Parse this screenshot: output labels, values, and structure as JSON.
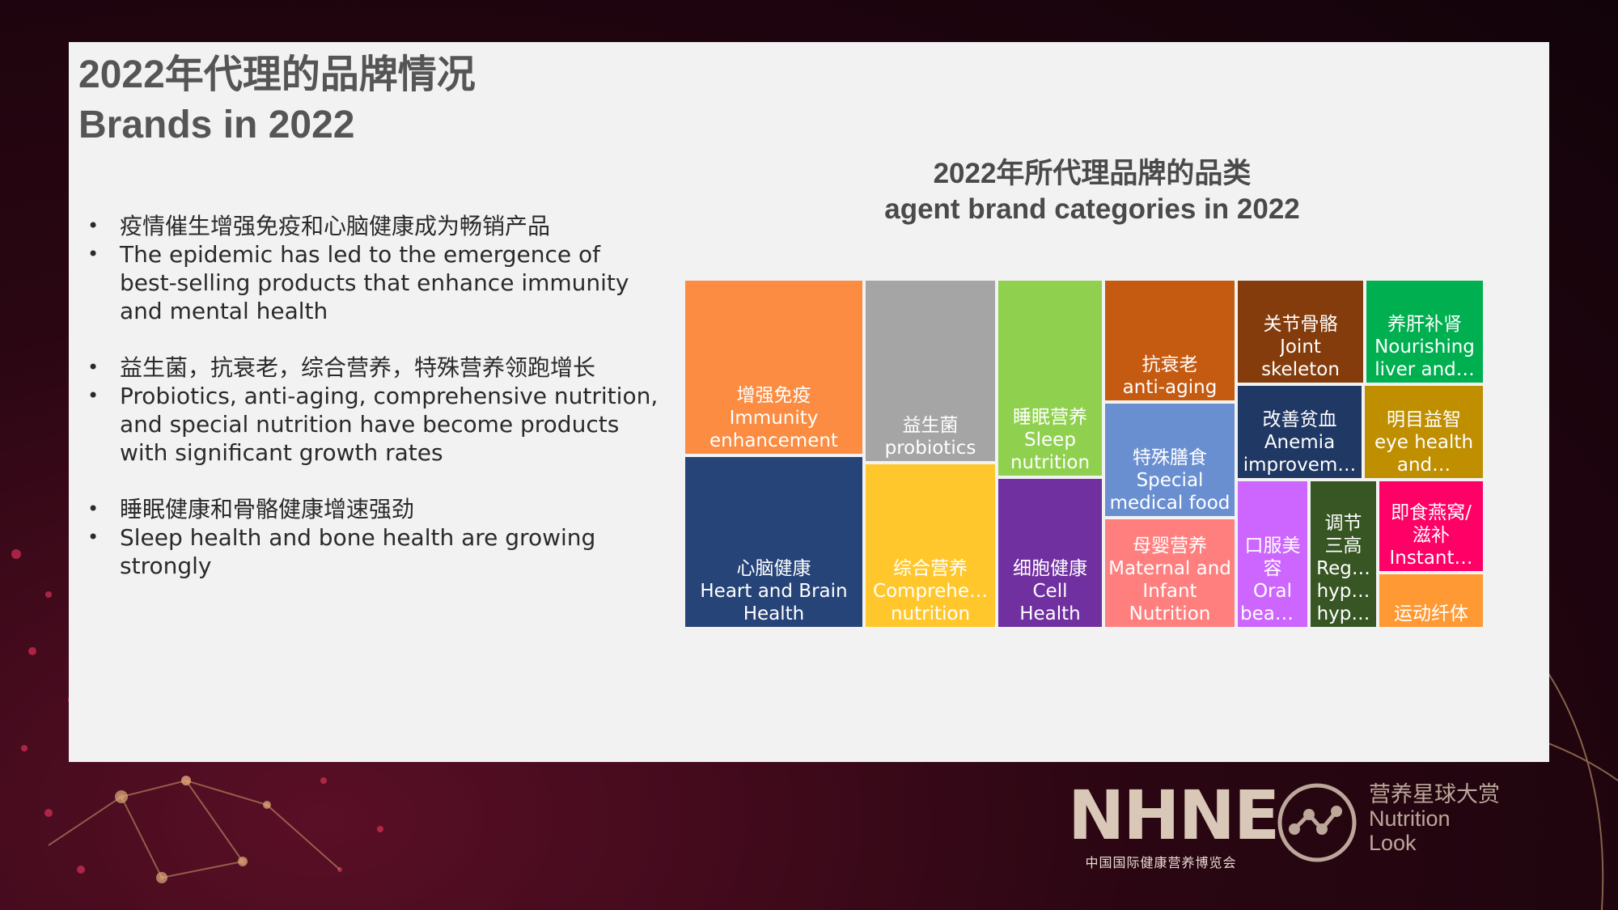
{
  "heading": {
    "line1": "2022年代理的品牌情况",
    "line2": "Brands in 2022"
  },
  "bullets": [
    "疫情催生增强免疫和心脑健康成为畅销产品",
    "The epidemic has led to the emergence of best-selling products that enhance immunity and mental health",
    "益生菌，抗衰老，综合营养，特殊营养领跑增长",
    "Probiotics, anti-aging, comprehensive nutrition, and special nutrition have become products with significant growth rates",
    "睡眠健康和骨骼健康增速强劲",
    "Sleep health and bone health are growing strongly"
  ],
  "chart_data": {
    "type": "treemap",
    "title": "2022年所代理品牌的品类",
    "subtitle": "agent brand categories in 2022",
    "tiles": [
      {
        "lines": [
          "增强免疫",
          "Immunity",
          "enhancement"
        ],
        "color": "#fb8c41"
      },
      {
        "lines": [
          "心脑健康",
          "Heart and Brain",
          "Health"
        ],
        "color": "#264478"
      },
      {
        "lines": [
          "益生菌",
          "probiotics"
        ],
        "color": "#a5a5a5"
      },
      {
        "lines": [
          "综合营养",
          "Comprehe…",
          "nutrition"
        ],
        "color": "#ffc72c"
      },
      {
        "lines": [
          "睡眠营养",
          "Sleep",
          "nutrition"
        ],
        "color": "#8fd14f"
      },
      {
        "lines": [
          "细胞健康",
          "Cell",
          "Health"
        ],
        "color": "#7030a0"
      },
      {
        "lines": [
          "抗衰老",
          "anti-aging"
        ],
        "color": "#c55a11"
      },
      {
        "lines": [
          "特殊膳食",
          "Special",
          "medical food"
        ],
        "color": "#6a8fd1"
      },
      {
        "lines": [
          "母婴营养",
          "Maternal and",
          "Infant",
          "Nutrition"
        ],
        "color": "#ff7f7f"
      },
      {
        "lines": [
          "关节骨骼",
          "Joint",
          "skeleton"
        ],
        "color": "#843c0c"
      },
      {
        "lines": [
          "改善贫血",
          "Anemia",
          "improvem…"
        ],
        "color": "#203864"
      },
      {
        "lines": [
          "口服美",
          "容",
          "Oral",
          "beauty"
        ],
        "color": "#cc66ff"
      },
      {
        "lines": [
          "调节",
          "三高",
          "Reg…",
          "hyp…",
          "hyp…"
        ],
        "color": "#375623"
      },
      {
        "lines": [
          "养肝补肾",
          "Nourishing",
          "liver and…"
        ],
        "color": "#00b050"
      },
      {
        "lines": [
          "明目益智",
          "eye health",
          "and…"
        ],
        "color": "#bf8f00"
      },
      {
        "lines": [
          "即食燕窝/",
          "滋补",
          "Instant…"
        ],
        "color": "#ff0066"
      },
      {
        "lines": [
          "运动纤体"
        ],
        "color": "#ff9933"
      }
    ]
  },
  "logos": {
    "nhne": "NHNE",
    "nhne_sub": "中国国际健康营养博览会",
    "nl_cn": "营养星球大赏",
    "nl_en1": "Nutrition",
    "nl_en2": "Look"
  }
}
